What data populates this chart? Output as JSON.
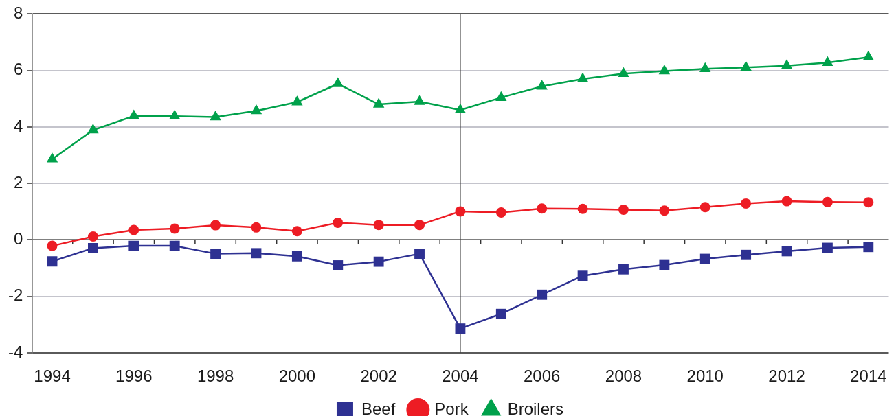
{
  "chart_data": {
    "type": "line",
    "x": [
      1994,
      1995,
      1996,
      1997,
      1998,
      1999,
      2000,
      2001,
      2002,
      2003,
      2004,
      2005,
      2006,
      2007,
      2008,
      2009,
      2010,
      2011,
      2012,
      2013,
      2014
    ],
    "xlim": [
      1993.5,
      2014.5
    ],
    "xticks": [
      1994,
      {
        "value": 1994.5,
        "label": null
      },
      {
        "value": 1995.5,
        "label": null
      },
      1996,
      {
        "value": 1996.5,
        "label": null
      },
      {
        "value": 1997.5,
        "label": null
      },
      1998,
      {
        "value": 1998.5,
        "label": null
      },
      {
        "value": 1999.5,
        "label": null
      },
      2000,
      {
        "value": 2000.5,
        "label": null
      },
      {
        "value": 2001.5,
        "label": null
      },
      2002,
      {
        "value": 2002.5,
        "label": null
      },
      {
        "value": 2003.5,
        "label": null
      },
      2004,
      {
        "value": 2004.5,
        "label": null
      },
      {
        "value": 2005.5,
        "label": null
      },
      2006,
      {
        "value": 2006.5,
        "label": null
      },
      {
        "value": 2007.5,
        "label": null
      },
      2008,
      {
        "value": 2008.5,
        "label": null
      },
      {
        "value": 2009.5,
        "label": null
      },
      2010,
      {
        "value": 2010.5,
        "label": null
      },
      {
        "value": 2011.5,
        "label": null
      },
      2012,
      {
        "value": 2012.5,
        "label": null
      },
      {
        "value": 2013.5,
        "label": null
      },
      2014
    ],
    "ylim": [
      -4,
      8
    ],
    "yticks": [
      -4,
      -2,
      0,
      2,
      4,
      6,
      8
    ],
    "grid": "y",
    "legend": "bottom",
    "line_style": "solid",
    "ref_lines": [
      {
        "axis": "x",
        "value": 2004,
        "color": "#404040"
      }
    ],
    "series": [
      {
        "name": "Beef",
        "color": "#2e3192",
        "marker": "square",
        "values": [
          -0.76,
          -0.29,
          -0.21,
          -0.21,
          -0.49,
          -0.47,
          -0.58,
          -0.9,
          -0.77,
          -0.49,
          -3.14,
          -2.62,
          -1.94,
          -1.27,
          -1.04,
          -0.89,
          -0.67,
          -0.53,
          -0.4,
          -0.28,
          -0.25
        ]
      },
      {
        "name": "Pork",
        "color": "#ed1c24",
        "marker": "circle",
        "values": [
          -0.21,
          0.12,
          0.35,
          0.4,
          0.52,
          0.44,
          0.31,
          0.61,
          0.53,
          0.53,
          1.01,
          0.97,
          1.11,
          1.1,
          1.07,
          1.04,
          1.16,
          1.29,
          1.37,
          1.34,
          1.33
        ]
      },
      {
        "name": "Broilers",
        "color": "#00a14b",
        "marker": "triangle",
        "values": [
          2.86,
          3.89,
          4.39,
          4.38,
          4.35,
          4.57,
          4.88,
          5.53,
          4.8,
          4.9,
          4.6,
          5.04,
          5.44,
          5.7,
          5.89,
          5.98,
          6.06,
          6.11,
          6.17,
          6.28,
          6.47
        ]
      }
    ]
  }
}
